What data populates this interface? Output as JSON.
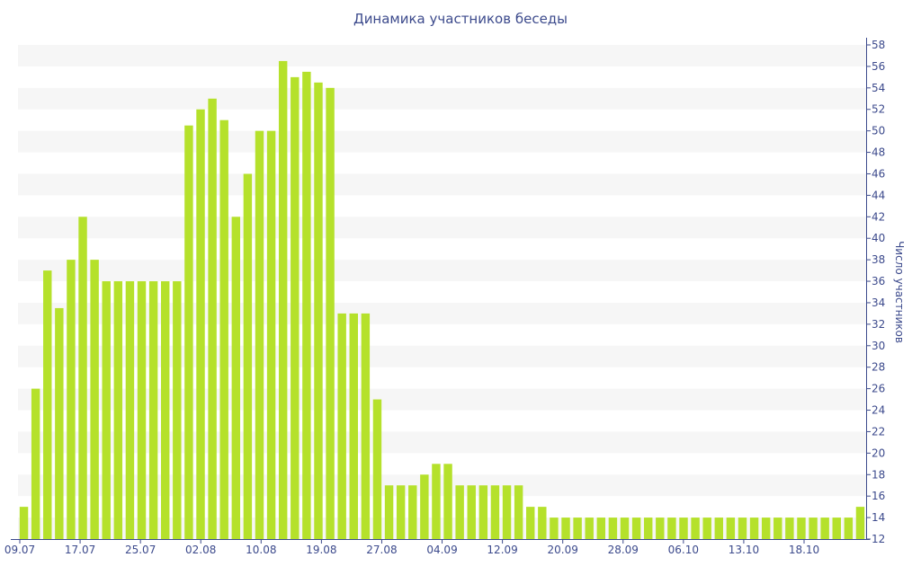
{
  "chart_data": {
    "type": "bar",
    "title": "Динамика участников беседы",
    "xlabel": "",
    "ylabel": "Число участников",
    "ylim": [
      12,
      58
    ],
    "y_ticks": [
      12,
      14,
      16,
      18,
      20,
      22,
      24,
      26,
      28,
      30,
      32,
      34,
      36,
      38,
      40,
      42,
      44,
      46,
      48,
      50,
      52,
      54,
      56,
      58
    ],
    "x_tick_labels": [
      "09.07",
      "17.07",
      "25.07",
      "02.08",
      "10.08",
      "19.08",
      "27.08",
      "04.09",
      "12.09",
      "20.09",
      "28.09",
      "06.10",
      "13.10",
      "18.10"
    ],
    "y_axis_position": "right",
    "grid": "horizontal alternating bands",
    "values": [
      15,
      26,
      37,
      33.5,
      38,
      42,
      38,
      36,
      36,
      36,
      36,
      36,
      36,
      36,
      50.5,
      52,
      53,
      51,
      42,
      46,
      50,
      50,
      56.5,
      55,
      55.5,
      54.5,
      54,
      33,
      33,
      33,
      25,
      17,
      17,
      17,
      18,
      19,
      19,
      17,
      17,
      17,
      17,
      17,
      17,
      15,
      15,
      14,
      14,
      14,
      14,
      14,
      14,
      14,
      14,
      14,
      14,
      14,
      14,
      14,
      14,
      14,
      14,
      14,
      14,
      14,
      14,
      14,
      14,
      14,
      14,
      14,
      14,
      15
    ],
    "colors": {
      "bar": "#b5e12b",
      "text": "#3c4a8c",
      "band": "#f6f6f6",
      "axis": "#3c4a8c"
    }
  }
}
